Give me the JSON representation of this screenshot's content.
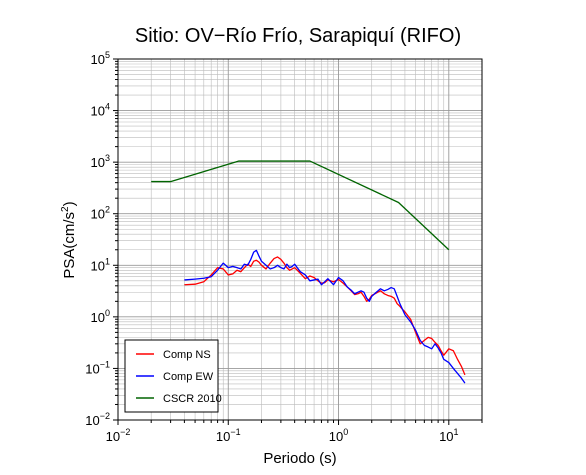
{
  "chart_data": {
    "type": "line",
    "title": "Sitio: OV−Río Frío, Sarapiquí (RIFO)",
    "xlabel": "Periodo (s)",
    "ylabel": "PSA(cm/s",
    "ylabel_sup": "2",
    "ylabel_close": ")",
    "x_scale": "log",
    "y_scale": "log",
    "xlim": [
      0.01,
      20
    ],
    "ylim": [
      0.01,
      100000
    ],
    "grid": true,
    "legend_position": "bottom-left",
    "x_ticks": [
      {
        "value": 0.01,
        "base": "10",
        "exp": "−2"
      },
      {
        "value": 0.1,
        "base": "10",
        "exp": "−1"
      },
      {
        "value": 1,
        "base": "10",
        "exp": "0"
      },
      {
        "value": 10,
        "base": "10",
        "exp": "1"
      }
    ],
    "y_ticks": [
      {
        "value": 0.01,
        "base": "10",
        "exp": "−2"
      },
      {
        "value": 0.1,
        "base": "10",
        "exp": "−1"
      },
      {
        "value": 1,
        "base": "10",
        "exp": "0"
      },
      {
        "value": 10,
        "base": "10",
        "exp": "1"
      },
      {
        "value": 100,
        "base": "10",
        "exp": "2"
      },
      {
        "value": 1000,
        "base": "10",
        "exp": "3"
      },
      {
        "value": 10000,
        "base": "10",
        "exp": "4"
      },
      {
        "value": 100000,
        "base": "10",
        "exp": "5"
      }
    ],
    "series": [
      {
        "name": "Comp NS",
        "color": "#ff0000",
        "x": [
          0.04,
          0.05,
          0.06,
          0.07,
          0.08,
          0.09,
          0.1,
          0.11,
          0.12,
          0.13,
          0.14,
          0.15,
          0.16,
          0.17,
          0.18,
          0.19,
          0.2,
          0.22,
          0.24,
          0.26,
          0.28,
          0.3,
          0.32,
          0.34,
          0.36,
          0.38,
          0.4,
          0.45,
          0.5,
          0.55,
          0.6,
          0.65,
          0.7,
          0.75,
          0.8,
          0.9,
          1.0,
          1.1,
          1.2,
          1.3,
          1.4,
          1.5,
          1.6,
          1.7,
          1.8,
          1.9,
          2.0,
          2.2,
          2.4,
          2.6,
          2.8,
          3.0,
          3.2,
          3.4,
          3.6,
          3.8,
          4.0,
          4.5,
          5.0,
          5.5,
          6.0,
          6.5,
          7.0,
          7.5,
          8.0,
          8.5,
          9.0,
          10.0,
          11.0,
          12.0,
          13.0,
          14.0
        ],
        "y": [
          4.2,
          4.3,
          4.8,
          6.5,
          9.0,
          8.5,
          6.5,
          6.8,
          8.0,
          7.5,
          9.0,
          10.5,
          9.5,
          12.0,
          12.5,
          11.5,
          10.0,
          8.5,
          11.0,
          13.5,
          14.5,
          13.0,
          11.0,
          9.0,
          8.0,
          8.5,
          9.0,
          7.0,
          5.5,
          6.2,
          5.8,
          5.0,
          4.5,
          4.6,
          5.2,
          4.8,
          5.3,
          4.5,
          3.8,
          3.2,
          2.7,
          2.8,
          3.0,
          2.5,
          2.0,
          2.2,
          2.6,
          2.9,
          3.2,
          2.8,
          2.6,
          2.5,
          2.3,
          1.8,
          1.6,
          1.4,
          1.25,
          0.9,
          0.5,
          0.3,
          0.35,
          0.4,
          0.38,
          0.32,
          0.28,
          0.22,
          0.18,
          0.24,
          0.22,
          0.15,
          0.11,
          0.075
        ]
      },
      {
        "name": "Comp EW",
        "color": "#0000ff",
        "x": [
          0.04,
          0.05,
          0.06,
          0.07,
          0.08,
          0.09,
          0.1,
          0.11,
          0.12,
          0.13,
          0.14,
          0.15,
          0.16,
          0.17,
          0.18,
          0.19,
          0.2,
          0.22,
          0.24,
          0.26,
          0.28,
          0.3,
          0.32,
          0.34,
          0.36,
          0.38,
          0.4,
          0.45,
          0.5,
          0.55,
          0.6,
          0.65,
          0.7,
          0.75,
          0.8,
          0.9,
          1.0,
          1.1,
          1.2,
          1.3,
          1.4,
          1.5,
          1.6,
          1.7,
          1.8,
          1.9,
          2.0,
          2.2,
          2.4,
          2.6,
          2.8,
          3.0,
          3.2,
          3.4,
          3.6,
          3.8,
          4.0,
          4.5,
          5.0,
          5.5,
          6.0,
          6.5,
          7.0,
          7.5,
          8.0,
          8.5,
          9.0,
          10.0,
          11.0,
          12.0,
          13.0,
          14.0
        ],
        "y": [
          5.2,
          5.4,
          5.6,
          6.0,
          8.0,
          11.0,
          9.0,
          9.5,
          9.0,
          8.5,
          10.5,
          10.0,
          13.0,
          18.0,
          19.5,
          15.0,
          12.0,
          10.0,
          8.5,
          9.0,
          10.0,
          9.0,
          8.5,
          10.5,
          9.0,
          9.5,
          10.5,
          7.5,
          6.5,
          5.0,
          5.2,
          5.4,
          4.2,
          4.8,
          5.5,
          4.2,
          5.8,
          5.0,
          3.8,
          3.3,
          2.8,
          3.0,
          3.2,
          3.0,
          2.3,
          2.0,
          2.5,
          3.0,
          3.5,
          3.2,
          3.4,
          3.7,
          3.5,
          2.5,
          1.8,
          1.4,
          1.1,
          0.8,
          0.55,
          0.35,
          0.28,
          0.26,
          0.24,
          0.3,
          0.25,
          0.2,
          0.15,
          0.13,
          0.1,
          0.08,
          0.065,
          0.052
        ]
      },
      {
        "name": "CSCR 2010",
        "color": "#006400",
        "x": [
          0.02,
          0.03,
          0.125,
          0.55,
          3.5,
          10.0
        ],
        "y": [
          420,
          420,
          1050,
          1050,
          165,
          20
        ]
      }
    ]
  }
}
